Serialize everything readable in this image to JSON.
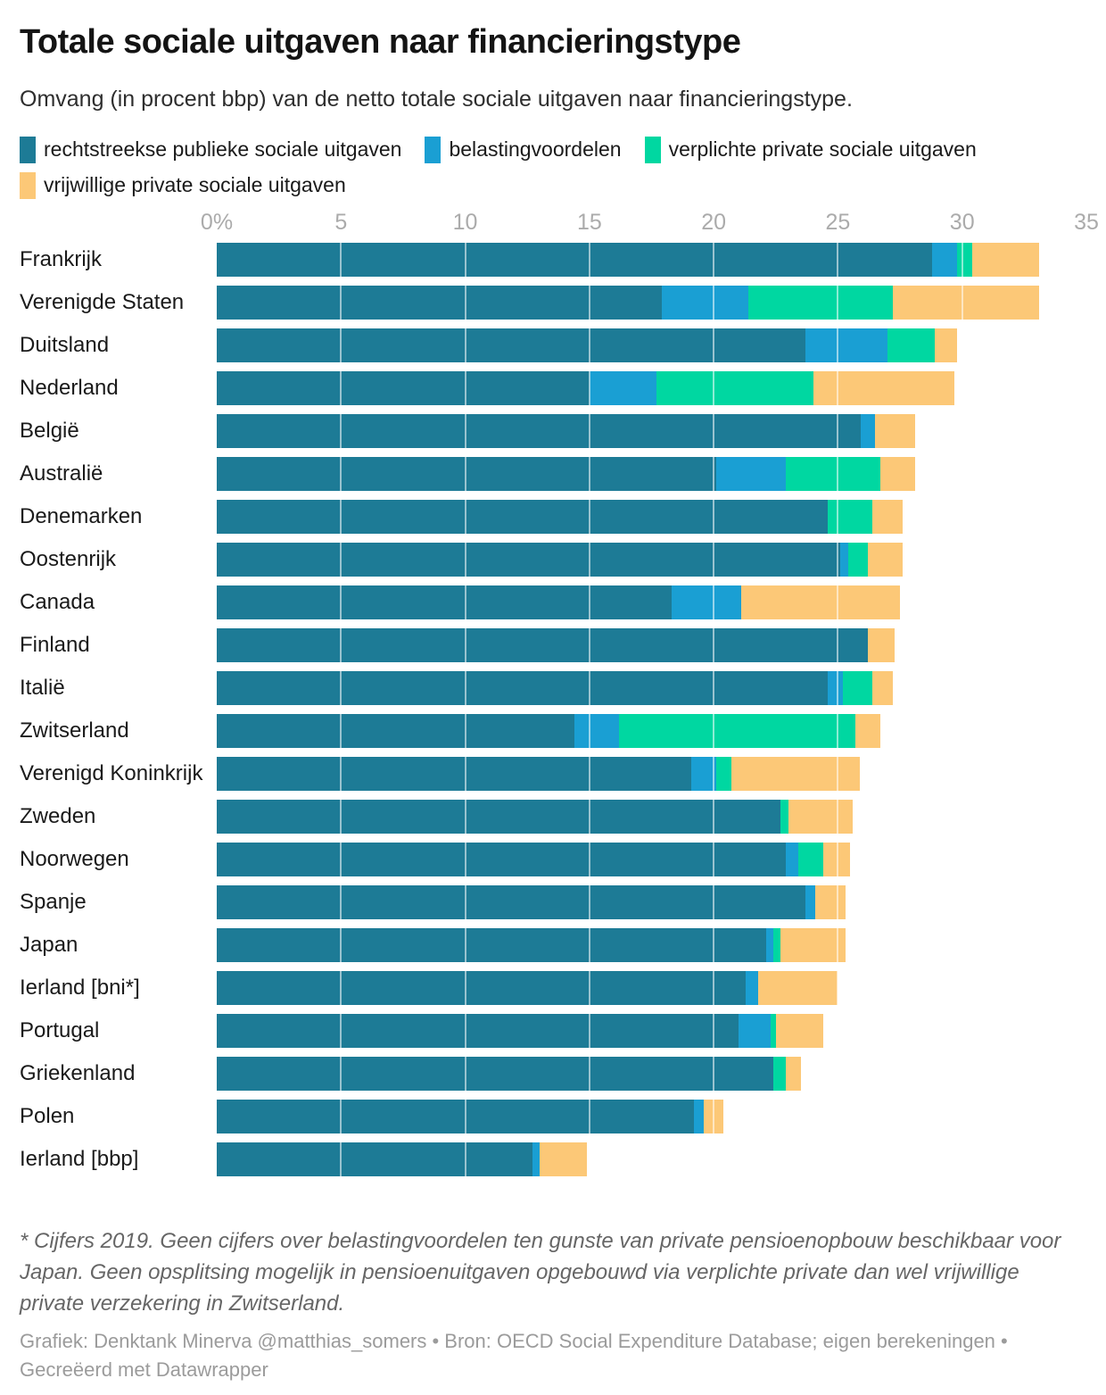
{
  "header": {
    "title": "Totale sociale uitgaven naar financieringstype",
    "subtitle": "Omvang (in procent bbp) van de netto totale sociale uitgaven naar financieringstype."
  },
  "legend": {
    "items": [
      {
        "label": "rechtstreekse publieke sociale uitgaven",
        "color": "#1d7b96"
      },
      {
        "label": "belastingvoordelen",
        "color": "#1a9fd3"
      },
      {
        "label": "verplichte private sociale uitgaven",
        "color": "#00d7a1"
      },
      {
        "label": "vrijwillige private sociale uitgaven",
        "color": "#fcc877"
      }
    ]
  },
  "chart_data": {
    "type": "bar",
    "orientation": "horizontal",
    "stacked": true,
    "title": "Totale sociale uitgaven naar financieringstype",
    "xlabel": "procent bbp",
    "xlim": [
      0,
      35
    ],
    "xticks": [
      "0%",
      "5",
      "10",
      "15",
      "20",
      "25",
      "30",
      "35"
    ],
    "grid": "vertical-white-over-bars",
    "legend_position": "top",
    "categories": [
      "Frankrijk",
      "Verenigde Staten",
      "Duitsland",
      "Nederland",
      "België",
      "Australië",
      "Denemarken",
      "Oostenrijk",
      "Canada",
      "Finland",
      "Italië",
      "Zwitserland",
      "Verenigd Koninkrijk",
      "Zweden",
      "Noorwegen",
      "Spanje",
      "Japan",
      "Ierland [bni*]",
      "Portugal",
      "Griekenland",
      "Polen",
      "Ierland [bbp]"
    ],
    "series": [
      {
        "name": "rechtstreekse publieke sociale uitgaven",
        "color": "#1d7b96",
        "values": [
          28.8,
          17.9,
          23.7,
          15.0,
          25.9,
          20.1,
          24.6,
          25.1,
          18.3,
          26.2,
          24.6,
          14.4,
          19.1,
          22.7,
          22.9,
          23.7,
          22.1,
          21.3,
          21.0,
          22.4,
          19.2,
          12.7
        ]
      },
      {
        "name": "belastingvoordelen",
        "color": "#1a9fd3",
        "values": [
          1.0,
          3.5,
          3.3,
          2.7,
          0.6,
          2.8,
          0,
          0.3,
          2.8,
          0,
          0.6,
          1.8,
          1.0,
          0,
          0.5,
          0.4,
          0.3,
          0.5,
          1.3,
          0,
          0.4,
          0.3
        ]
      },
      {
        "name": "verplichte private sociale uitgaven",
        "color": "#00d7a1",
        "values": [
          0.6,
          5.8,
          1.9,
          6.3,
          0,
          3.8,
          1.8,
          0.8,
          0,
          0,
          1.2,
          9.5,
          0.6,
          0.3,
          1.0,
          0,
          0.3,
          0,
          0.2,
          0.5,
          0,
          0
        ]
      },
      {
        "name": "vrijwillige private sociale uitgaven",
        "color": "#fcc877",
        "values": [
          2.7,
          5.9,
          0.9,
          5.7,
          1.6,
          1.4,
          1.2,
          1.4,
          6.4,
          1.1,
          0.8,
          1.0,
          5.2,
          2.6,
          1.1,
          1.2,
          2.6,
          3.2,
          1.9,
          0.6,
          0.8,
          1.9
        ]
      }
    ]
  },
  "footer": {
    "note": "* Cijfers 2019. Geen cijfers over belastingvoordelen ten gunste van private pensioenopbouw beschikbaar voor Japan. Geen opsplitsing mogelijk in pensioenuitgaven opgebouwd via verplichte private dan wel vrijwillige private verzekering in Zwitserland.",
    "credits": "Grafiek: Denktank Minerva @matthias_somers • Bron: OECD Social Expenditure Database; eigen berekeningen • Gecreëerd met Datawrapper"
  }
}
